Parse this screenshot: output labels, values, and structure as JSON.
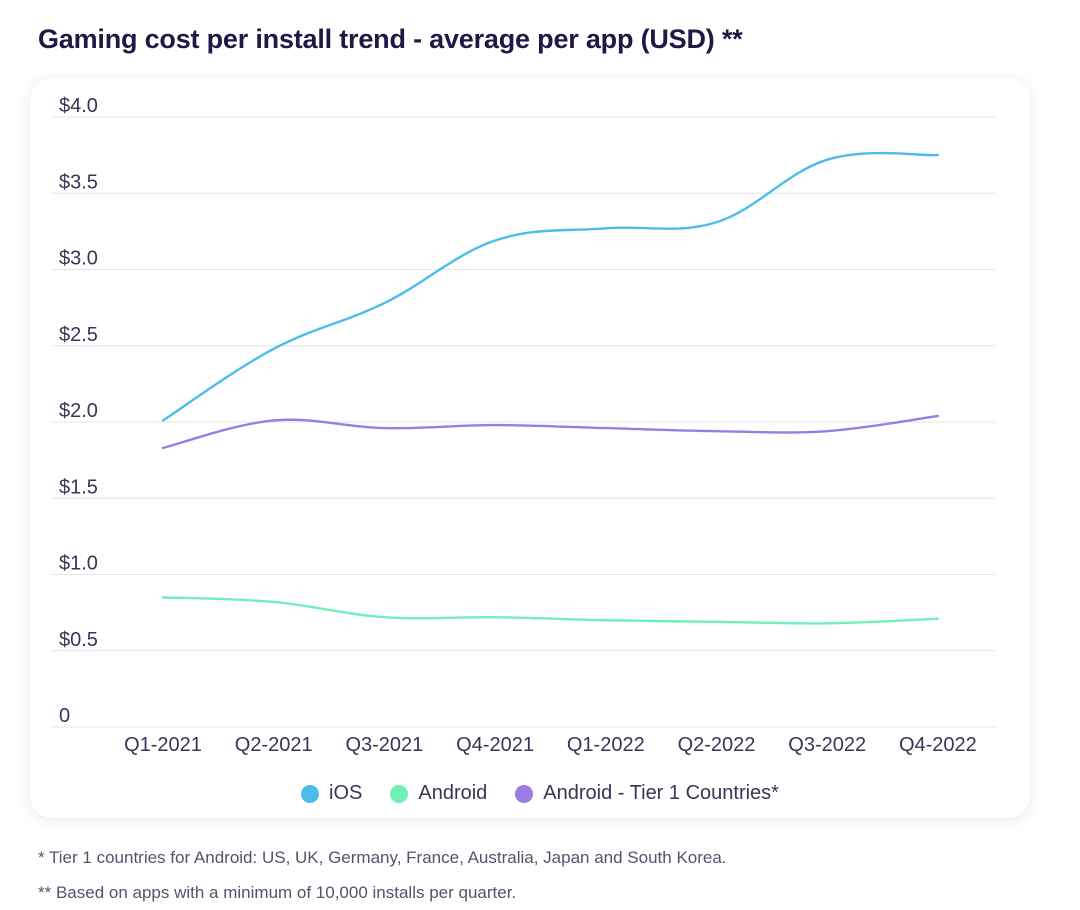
{
  "title": "Gaming cost per install trend - average per app (USD) **",
  "chart_data": {
    "type": "line",
    "categories": [
      "Q1-2021",
      "Q2-2021",
      "Q3-2021",
      "Q4-2021",
      "Q1-2022",
      "Q2-2022",
      "Q3-2022",
      "Q4-2022"
    ],
    "ylim": [
      0,
      4.0
    ],
    "yticks": [
      0,
      0.5,
      1.0,
      1.5,
      2.0,
      2.5,
      3.0,
      3.5,
      4.0
    ],
    "ytick_labels": [
      "0",
      "$0.5",
      "$1.0",
      "$1.5",
      "$2.0",
      "$2.5",
      "$3.0",
      "$3.5",
      "$4.0"
    ],
    "grid": true,
    "legend_position": "bottom-center",
    "series": [
      {
        "name": "iOS",
        "color": "#4cbdea",
        "values": [
          2.01,
          2.48,
          2.78,
          3.19,
          3.27,
          3.31,
          3.72,
          3.75
        ]
      },
      {
        "name": "Android",
        "color": "#6ff0b4",
        "values": [
          0.85,
          0.82,
          0.72,
          0.72,
          0.7,
          0.69,
          0.68,
          0.71
        ]
      },
      {
        "name": "Android - Tier 1 Countries*",
        "color": "#9b7ce6",
        "values": [
          1.83,
          2.01,
          1.96,
          1.98,
          1.96,
          1.94,
          1.94,
          2.04
        ]
      }
    ]
  },
  "footnotes": {
    "tier1": "* Tier 1 countries for Android: US, UK, Germany, France, Australia, Japan and South Korea.",
    "minimum": "** Based on apps with a minimum of 10,000 installs per quarter."
  }
}
